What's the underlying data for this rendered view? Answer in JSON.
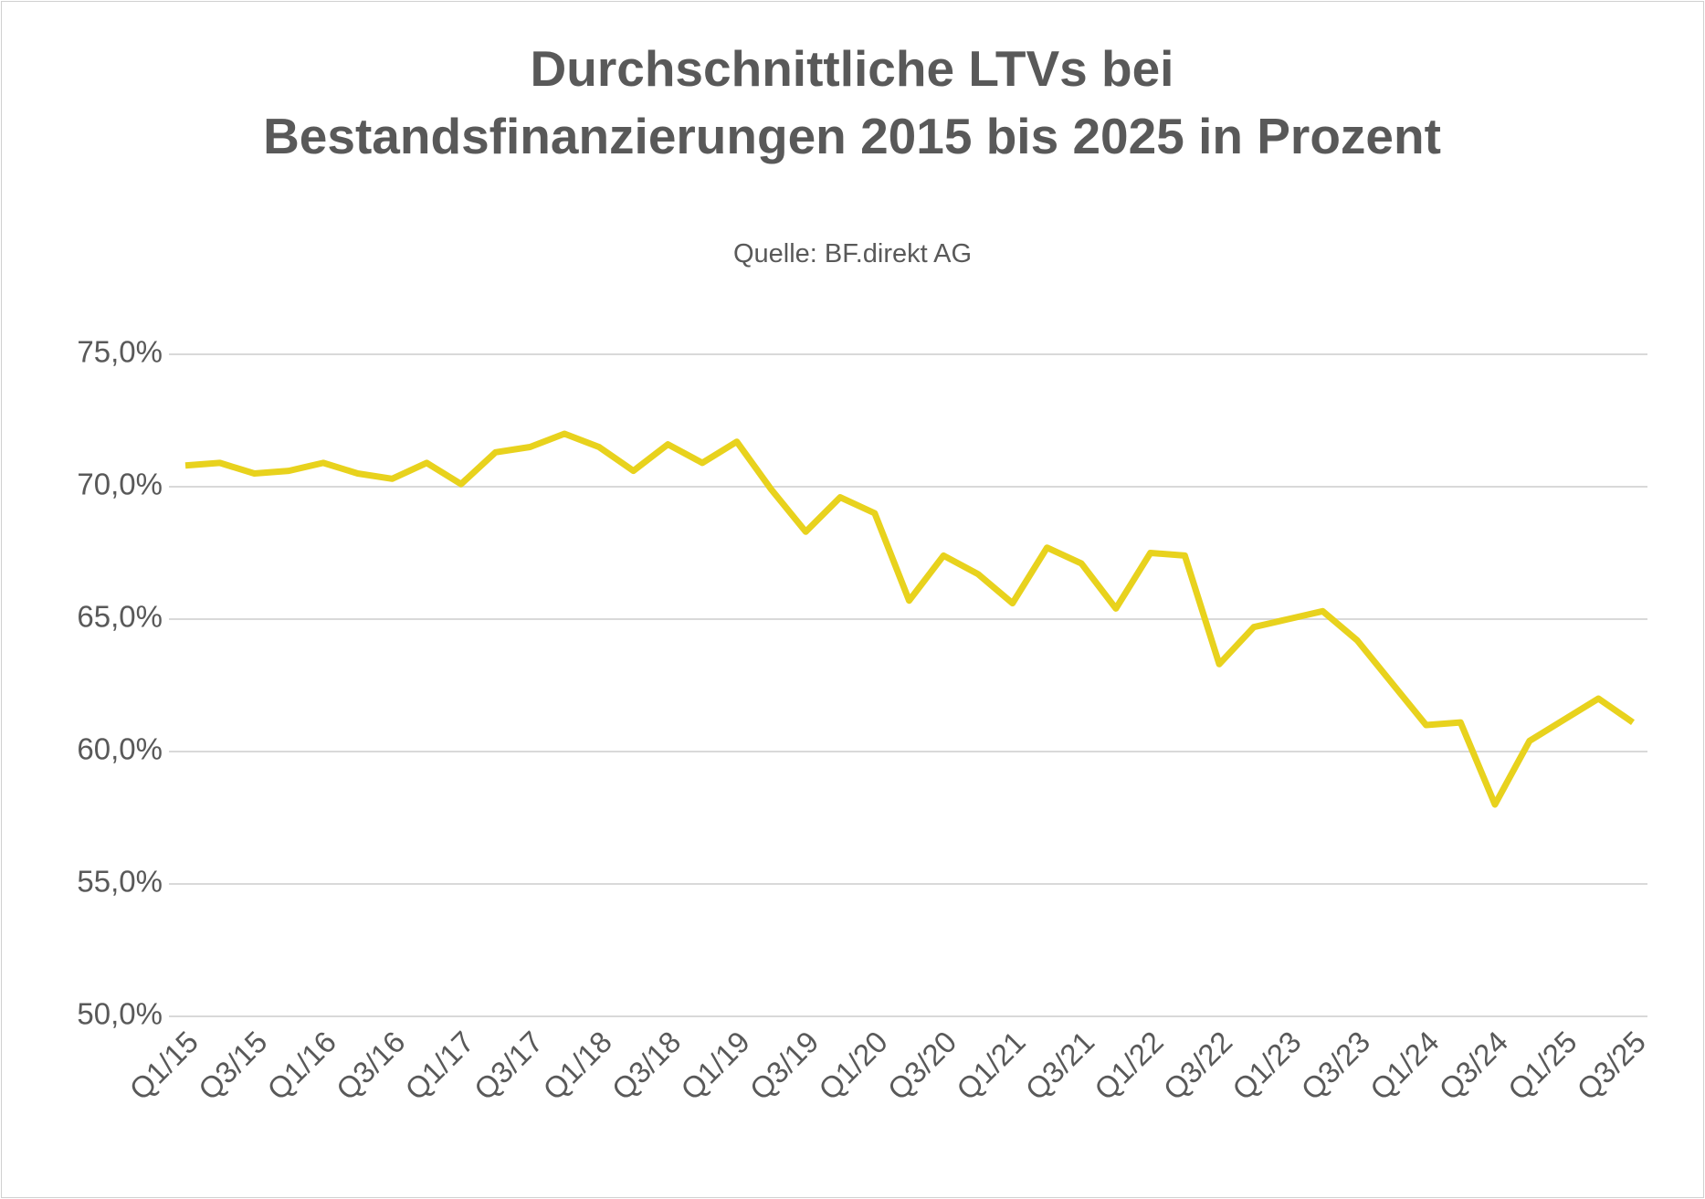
{
  "chart_data": {
    "type": "line",
    "title": "Durchschnittliche LTVs bei Bestandsfinanzierungen 2015 bis 2025 in Prozent",
    "subtitle": "Quelle: BF.direkt AG",
    "categories": [
      "Q1/15",
      null,
      "Q3/15",
      null,
      "Q1/16",
      null,
      "Q3/16",
      null,
      "Q1/17",
      null,
      "Q3/17",
      null,
      "Q1/18",
      null,
      "Q3/18",
      null,
      "Q1/19",
      null,
      "Q3/19",
      null,
      "Q1/20",
      null,
      "Q3/20",
      null,
      "Q1/21",
      null,
      "Q3/21",
      null,
      "Q1/22",
      null,
      "Q3/22",
      null,
      "Q1/23",
      null,
      "Q3/23",
      null,
      "Q1/24",
      null,
      "Q3/24",
      null,
      "Q1/25",
      null,
      "Q3/25"
    ],
    "series": [
      {
        "color": "#e8d21d",
        "values": [
          70.8,
          70.9,
          70.5,
          70.6,
          70.9,
          70.5,
          70.3,
          70.9,
          70.1,
          71.3,
          71.5,
          72.0,
          71.5,
          70.6,
          71.6,
          70.9,
          71.7,
          69.9,
          68.3,
          69.6,
          69.0,
          65.7,
          67.4,
          66.7,
          65.6,
          67.7,
          67.1,
          65.4,
          67.5,
          67.4,
          63.3,
          64.7,
          65.0,
          65.3,
          64.2,
          62.6,
          61.0,
          61.1,
          58.0,
          60.4,
          61.2,
          62.0,
          61.1
        ]
      }
    ],
    "ylim": [
      50,
      75
    ],
    "yticks": [
      {
        "value": 50,
        "label": "50,0%"
      },
      {
        "value": 55,
        "label": "55,0%"
      },
      {
        "value": 60,
        "label": "60,0%"
      },
      {
        "value": 65,
        "label": "65,0%"
      },
      {
        "value": 70,
        "label": "70,0%"
      },
      {
        "value": 75,
        "label": "75,0%"
      }
    ],
    "grid": true
  }
}
